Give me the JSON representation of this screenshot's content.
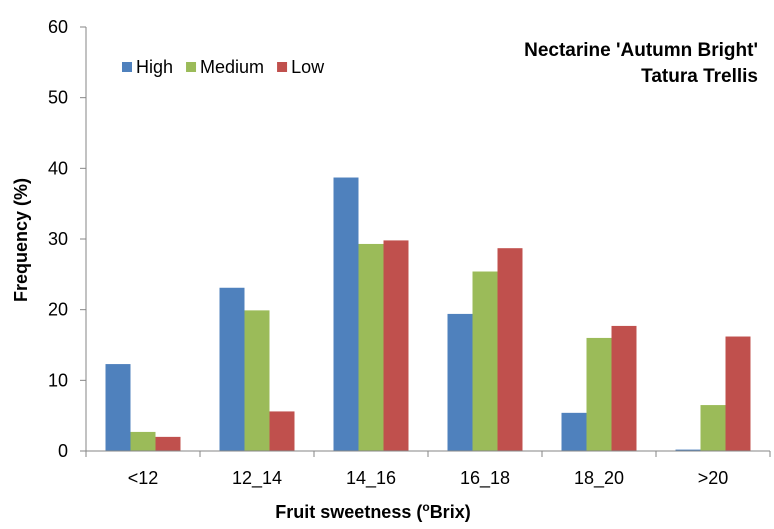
{
  "chart_data": {
    "type": "bar",
    "title": "Nectarine 'Autumn Bright'",
    "subtitle": "Tatura Trellis",
    "xlabel": "Fruit sweetness (",
    "xlabel_sup": "o",
    "xlabel_end": "Brix)",
    "ylabel": "Frequency (%)",
    "ylim": [
      0,
      60
    ],
    "yticks": [
      "0",
      "10",
      "20",
      "30",
      "40",
      "50",
      "60"
    ],
    "categories": [
      "<12",
      "12_14",
      "14_16",
      "16_18",
      "18_20",
      ">20"
    ],
    "series": [
      {
        "name": "High",
        "color": "#4F81BD",
        "values": [
          12.3,
          23.1,
          38.7,
          19.4,
          5.4,
          0.2
        ]
      },
      {
        "name": "Medium",
        "color": "#9BBB59",
        "values": [
          2.7,
          19.9,
          29.3,
          25.4,
          16.0,
          6.5
        ]
      },
      {
        "name": "Low",
        "color": "#C0504D",
        "values": [
          2.0,
          5.6,
          29.8,
          28.7,
          17.7,
          16.2
        ]
      }
    ],
    "grid": false,
    "legend_position": "top-left"
  }
}
